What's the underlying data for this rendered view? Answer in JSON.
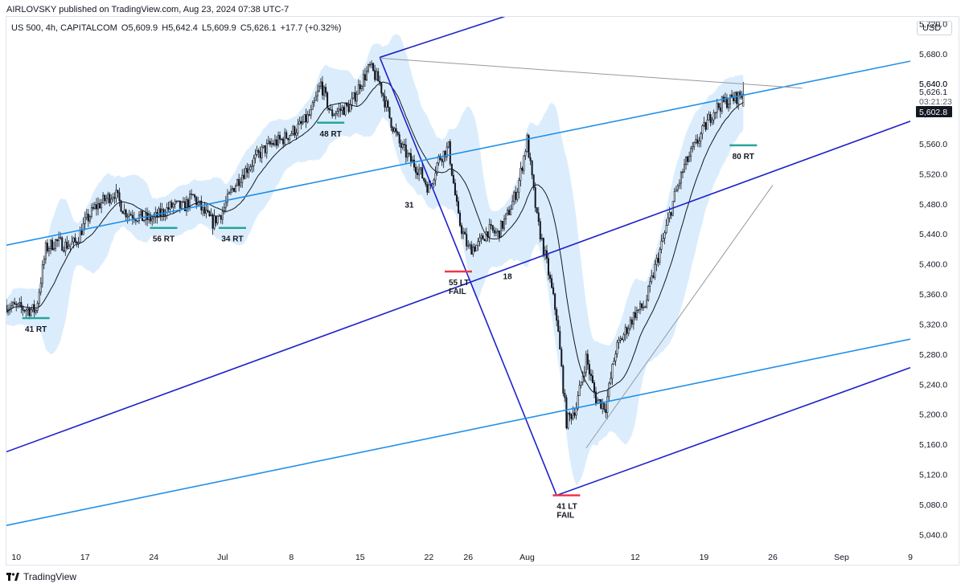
{
  "header": {
    "publish_line": "AIRLOVSKY published on TradingView.com, Aug 23, 2024 07:38 UTC-7"
  },
  "symbol_bar": {
    "symbol": "US 500, 4h, CAPITALCOM",
    "open": "O5,609.9",
    "high": "H5,642.4",
    "low": "L5,609.9",
    "close": "C5,626.1",
    "change": "+17.7 (+0.32%)"
  },
  "currency": "USD",
  "footer": {
    "brand": "TradingView"
  },
  "colors": {
    "candle": "#131722",
    "band_fill": "#cfe7fb",
    "ma_line": "#131722",
    "trend_dark_blue": "#1f22c8",
    "trend_light_blue": "#2290e8",
    "resistance_gray": "#9598a1",
    "support_marker": "#26a69a",
    "fail_marker": "#f23645",
    "price_tag": "#131722"
  },
  "chart_data": {
    "type": "candlestick",
    "timeframe": "4h",
    "y_axis": {
      "ylim": [
        5020,
        5730
      ],
      "ticks": [
        5040,
        5080,
        5120,
        5160,
        5200,
        5240,
        5280,
        5320,
        5360,
        5400,
        5440,
        5480,
        5520,
        5560,
        5600,
        5640,
        5680,
        5720
      ],
      "tick_labels": [
        "5,040.0",
        "5,080.0",
        "5,120.0",
        "5,160.0",
        "5,200.0",
        "5,240.0",
        "5,280.0",
        "5,320.0",
        "5,360.0",
        "5,400.0",
        "5,440.0",
        "5,480.0",
        "5,520.0",
        "5,560.0",
        "5,600.0",
        "5,640.0",
        "5,680.0",
        "5,720.0"
      ]
    },
    "x_axis": {
      "xlim": [
        "2024-06-09",
        "2024-09-09"
      ],
      "ticks": [
        {
          "date": "2024-06-10",
          "label": "10"
        },
        {
          "date": "2024-06-17",
          "label": "17"
        },
        {
          "date": "2024-06-24",
          "label": "24"
        },
        {
          "date": "2024-07-01",
          "label": "Jul"
        },
        {
          "date": "2024-07-08",
          "label": "8"
        },
        {
          "date": "2024-07-15",
          "label": "15"
        },
        {
          "date": "2024-07-22",
          "label": "22"
        },
        {
          "date": "2024-07-26",
          "label": "26"
        },
        {
          "date": "2024-08-01",
          "label": "Aug"
        },
        {
          "date": "2024-08-12",
          "label": "12"
        },
        {
          "date": "2024-08-19",
          "label": "19"
        },
        {
          "date": "2024-08-26",
          "label": "26"
        },
        {
          "date": "2024-09-02",
          "label": "Sep"
        },
        {
          "date": "2024-09-09",
          "label": "9"
        }
      ]
    },
    "price_series": [
      [
        "2024-06-09",
        5345
      ],
      [
        "2024-06-10",
        5342
      ],
      [
        "2024-06-11",
        5340
      ],
      [
        "2024-06-12",
        5338
      ],
      [
        "2024-06-13",
        5420
      ],
      [
        "2024-06-14",
        5430
      ],
      [
        "2024-06-15",
        5425
      ],
      [
        "2024-06-16",
        5428
      ],
      [
        "2024-06-17",
        5455
      ],
      [
        "2024-06-18",
        5475
      ],
      [
        "2024-06-19",
        5485
      ],
      [
        "2024-06-20",
        5495
      ],
      [
        "2024-06-21",
        5470
      ],
      [
        "2024-06-22",
        5465
      ],
      [
        "2024-06-23",
        5460
      ],
      [
        "2024-06-24",
        5460
      ],
      [
        "2024-06-25",
        5470
      ],
      [
        "2024-06-26",
        5478
      ],
      [
        "2024-06-27",
        5475
      ],
      [
        "2024-06-28",
        5490
      ],
      [
        "2024-06-29",
        5470
      ],
      [
        "2024-06-30",
        5455
      ],
      [
        "2024-07-01",
        5470
      ],
      [
        "2024-07-02",
        5500
      ],
      [
        "2024-07-03",
        5520
      ],
      [
        "2024-07-04",
        5535
      ],
      [
        "2024-07-05",
        5550
      ],
      [
        "2024-07-06",
        5560
      ],
      [
        "2024-07-07",
        5565
      ],
      [
        "2024-07-08",
        5575
      ],
      [
        "2024-07-09",
        5585
      ],
      [
        "2024-07-10",
        5600
      ],
      [
        "2024-07-11",
        5640
      ],
      [
        "2024-07-12",
        5600
      ],
      [
        "2024-07-13",
        5605
      ],
      [
        "2024-07-14",
        5610
      ],
      [
        "2024-07-15",
        5640
      ],
      [
        "2024-07-16",
        5662
      ],
      [
        "2024-07-17",
        5640
      ],
      [
        "2024-07-18",
        5595
      ],
      [
        "2024-07-19",
        5560
      ],
      [
        "2024-07-20",
        5540
      ],
      [
        "2024-07-21",
        5525
      ],
      [
        "2024-07-22",
        5500
      ],
      [
        "2024-07-23",
        5540
      ],
      [
        "2024-07-24",
        5555
      ],
      [
        "2024-07-25",
        5460
      ],
      [
        "2024-07-26",
        5420
      ],
      [
        "2024-07-27",
        5425
      ],
      [
        "2024-07-28",
        5445
      ],
      [
        "2024-07-29",
        5440
      ],
      [
        "2024-07-30",
        5465
      ],
      [
        "2024-07-31",
        5500
      ],
      [
        "2024-08-01",
        5565
      ],
      [
        "2024-08-02",
        5460
      ],
      [
        "2024-08-03",
        5400
      ],
      [
        "2024-08-04",
        5330
      ],
      [
        "2024-08-05",
        5190
      ],
      [
        "2024-08-06",
        5210
      ],
      [
        "2024-08-07",
        5275
      ],
      [
        "2024-08-08",
        5220
      ],
      [
        "2024-08-09",
        5210
      ],
      [
        "2024-08-10",
        5285
      ],
      [
        "2024-08-11",
        5310
      ],
      [
        "2024-08-12",
        5335
      ],
      [
        "2024-08-13",
        5345
      ],
      [
        "2024-08-14",
        5395
      ],
      [
        "2024-08-15",
        5440
      ],
      [
        "2024-08-16",
        5490
      ],
      [
        "2024-08-17",
        5530
      ],
      [
        "2024-08-18",
        5555
      ],
      [
        "2024-08-19",
        5580
      ],
      [
        "2024-08-20",
        5605
      ],
      [
        "2024-08-21",
        5615
      ],
      [
        "2024-08-22",
        5620
      ],
      [
        "2024-08-23",
        5626.1
      ]
    ],
    "last_price": 5602.8,
    "last_price_label": "5,602.8",
    "countdown": "03:21:23",
    "high_label": "5,640.0",
    "close_label": "5,626.1",
    "trend_lines": [
      {
        "color": "trend_dark_blue",
        "from": [
          "2024-07-17",
          5675
        ],
        "to": [
          "2024-07-31",
          5735
        ]
      },
      {
        "color": "trend_dark_blue",
        "from": [
          "2024-07-17",
          5675
        ],
        "to": [
          "2024-08-04",
          5092
        ]
      },
      {
        "color": "trend_dark_blue",
        "from": [
          "2024-06-09",
          5150
        ],
        "to": [
          "2024-09-09",
          5590
        ]
      },
      {
        "color": "trend_dark_blue",
        "from": [
          "2024-08-04",
          5092
        ],
        "to": [
          "2024-09-09",
          5262
        ]
      },
      {
        "color": "trend_light_blue",
        "from": [
          "2024-06-09",
          5425
        ],
        "to": [
          "2024-09-09",
          5670
        ]
      },
      {
        "color": "trend_light_blue",
        "from": [
          "2024-06-09",
          5052
        ],
        "to": [
          "2024-09-09",
          5300
        ]
      },
      {
        "color": "resistance_gray",
        "from": [
          "2024-07-17",
          5674
        ],
        "to": [
          "2024-08-29",
          5634
        ]
      },
      {
        "color": "resistance_gray",
        "from": [
          "2024-08-07",
          5155
        ],
        "to": [
          "2024-08-26",
          5505
        ]
      }
    ],
    "annotations": [
      {
        "text": "41 RT",
        "date": "2024-06-12",
        "price": 5328,
        "marker": "support_marker"
      },
      {
        "text": "56 RT",
        "date": "2024-06-25",
        "price": 5448,
        "marker": "support_marker"
      },
      {
        "text": "34 RT",
        "date": "2024-07-02",
        "price": 5448,
        "marker": "support_marker"
      },
      {
        "text": "48 RT",
        "date": "2024-07-12",
        "price": 5588,
        "marker": "support_marker"
      },
      {
        "text": "31",
        "date": "2024-07-20",
        "price": 5493,
        "marker": ""
      },
      {
        "text": "55 LT",
        "text2": "FAIL",
        "date": "2024-07-25",
        "price": 5390,
        "marker": "fail_marker"
      },
      {
        "text": "18",
        "date": "2024-07-30",
        "price": 5398,
        "marker": ""
      },
      {
        "text": "41 LT",
        "text2": "FAIL",
        "date": "2024-08-05",
        "price": 5092,
        "marker": "fail_marker"
      },
      {
        "text": "80 RT",
        "date": "2024-08-23",
        "price": 5558,
        "marker": "support_marker"
      }
    ]
  }
}
